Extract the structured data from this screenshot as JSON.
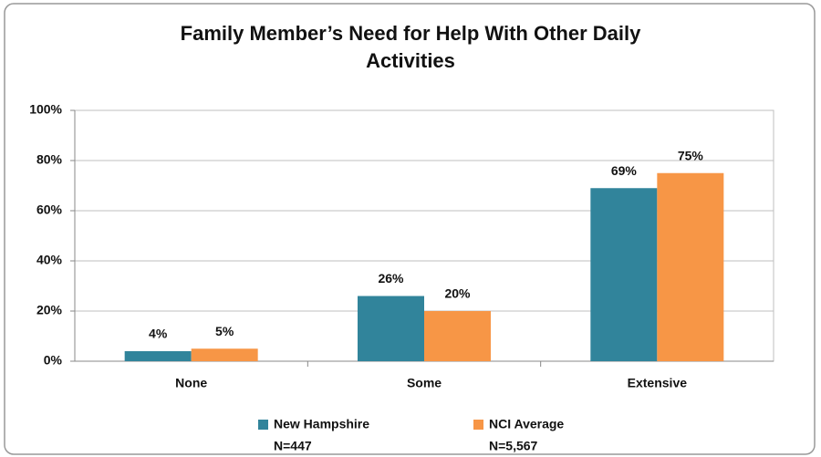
{
  "chart_data": {
    "type": "bar",
    "title": "Family Member’s Need for Help With Other Daily Activities",
    "categories": [
      "None",
      "Some",
      "Extensive"
    ],
    "series": [
      {
        "name": "New Hampshire",
        "n_label": "N=447",
        "color": "#31849b",
        "values": [
          4,
          26,
          69
        ],
        "value_labels": [
          "4%",
          "26%",
          "69%"
        ]
      },
      {
        "name": "NCI Average",
        "n_label": "N=5,567",
        "color": "#f79646",
        "values": [
          5,
          20,
          75
        ],
        "value_labels": [
          "5%",
          "20%",
          "75%"
        ]
      }
    ],
    "ylim": [
      0,
      100
    ],
    "yticks": [
      {
        "value": 0,
        "label": "0%"
      },
      {
        "value": 20,
        "label": "20%"
      },
      {
        "value": 40,
        "label": "40%"
      },
      {
        "value": 60,
        "label": "60%"
      },
      {
        "value": 80,
        "label": "80%"
      },
      {
        "value": 100,
        "label": "100%"
      }
    ],
    "grid": true,
    "legend": "bottom"
  }
}
